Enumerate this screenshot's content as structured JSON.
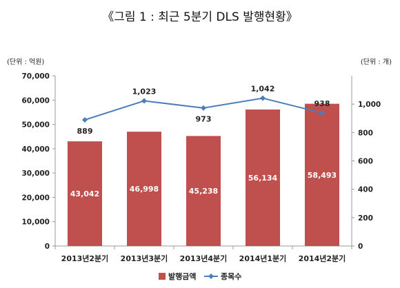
{
  "chart_data": {
    "type": "bar",
    "title": "《그림 1 : 최근 5분기 DLS 발행현황》",
    "left_unit": "(단위 : 억원)",
    "right_unit": "(단위 : 개)",
    "categories": [
      "2013년2분기",
      "2013년3분기",
      "2013년4분기",
      "2014년1분기",
      "2014년2분기"
    ],
    "series": [
      {
        "name": "발행금액",
        "type": "bar",
        "axis": "left",
        "color": "#c0504d",
        "values": [
          43042,
          46998,
          45238,
          56134,
          58493
        ],
        "labels": [
          "43,042",
          "46,998",
          "45,238",
          "56,134",
          "58,493"
        ]
      },
      {
        "name": "종목수",
        "type": "line",
        "axis": "right",
        "color": "#4a7ebb",
        "values": [
          889,
          1023,
          973,
          1042,
          938
        ],
        "labels": [
          "889",
          "1,023",
          "973",
          "1,042",
          "938"
        ]
      }
    ],
    "left_axis": {
      "ylim": [
        0,
        70000
      ],
      "ticks": [
        "0",
        "10,000",
        "20,000",
        "30,000",
        "40,000",
        "50,000",
        "60,000",
        "70,000"
      ]
    },
    "right_axis": {
      "ylim": [
        0,
        1200
      ],
      "ticks": [
        "0",
        "200",
        "400",
        "600",
        "800",
        "1,000"
      ]
    },
    "grid": false,
    "legend_position": "bottom"
  }
}
